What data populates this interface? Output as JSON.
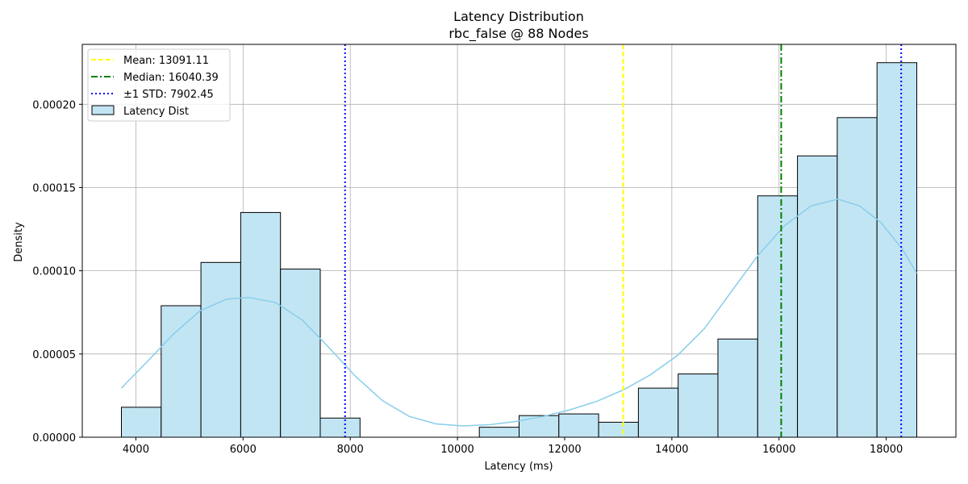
{
  "chart_data": {
    "type": "bar",
    "title": "Latency Distribution",
    "subtitle": "rbc_false @ 88 Nodes",
    "xlabel": "Latency (ms)",
    "ylabel": "Density",
    "xlim": [
      3000,
      19300
    ],
    "ylim": [
      0,
      0.000236
    ],
    "x_ticks": [
      4000,
      6000,
      8000,
      10000,
      12000,
      14000,
      16000,
      18000
    ],
    "y_ticks": [
      0.0,
      5e-05,
      0.0001,
      0.00015,
      0.0002
    ],
    "y_tick_labels": [
      "0.00000",
      "0.00005",
      "0.00010",
      "0.00015",
      "0.00020"
    ],
    "grid": true,
    "legend_position": "top-left",
    "bin_edges": [
      3730,
      4472,
      5214,
      5956,
      6698,
      7440,
      8182,
      8924,
      9666,
      10408,
      11150,
      11892,
      12634,
      13376,
      14118,
      14860,
      15602,
      16344,
      17086,
      17828,
      18570
    ],
    "series": [
      {
        "name": "Latency Dist",
        "kind": "histogram",
        "values": [
          1.8e-05,
          7.9e-05,
          0.000105,
          0.000135,
          0.000101,
          1.15e-05,
          0,
          0,
          0,
          6e-06,
          1.3e-05,
          1.4e-05,
          9e-06,
          2.95e-05,
          3.8e-05,
          5.9e-05,
          0.000145,
          0.000169,
          0.000192,
          0.000225
        ],
        "fill": "#c2e5f3",
        "edge": "#000000"
      },
      {
        "name": "",
        "kind": "kde",
        "x": [
          3730,
          4200,
          4700,
          5200,
          5700,
          6100,
          6600,
          7100,
          7600,
          8100,
          8600,
          9100,
          9600,
          10100,
          10600,
          11100,
          11600,
          12100,
          12600,
          13100,
          13600,
          14100,
          14600,
          15100,
          15600,
          16100,
          16600,
          17100,
          17500,
          17900,
          18300,
          18570
        ],
        "y": [
          2.95e-05,
          4.5e-05,
          6.2e-05,
          7.6e-05,
          8.3e-05,
          8.4e-05,
          8.1e-05,
          7.05e-05,
          5.4e-05,
          3.65e-05,
          2.2e-05,
          1.25e-05,
          8e-06,
          6.8e-06,
          7.5e-06,
          9.5e-06,
          1.25e-05,
          1.65e-05,
          2.15e-05,
          2.85e-05,
          3.75e-05,
          4.9e-05,
          6.5e-05,
          8.7e-05,
          0.000109,
          0.000127,
          0.000139,
          0.000143,
          0.000139,
          0.000129,
          0.000113,
          9.85e-05
        ],
        "color": "#87ceeb"
      }
    ],
    "lines": [
      {
        "name": "Mean: 13091.11",
        "x": 13091.11,
        "color": "#ffff00",
        "style": "dashed"
      },
      {
        "name": "Median: 16040.39",
        "x": 16040.39,
        "color": "#008000",
        "style": "dashdot"
      },
      {
        "name": "±1 STD: 7902.45",
        "x": 7902.45,
        "color": "#0000ff",
        "style": "dotted"
      },
      {
        "name": "",
        "x": 18279.66,
        "color": "#0000ff",
        "style": "dotted"
      }
    ]
  }
}
